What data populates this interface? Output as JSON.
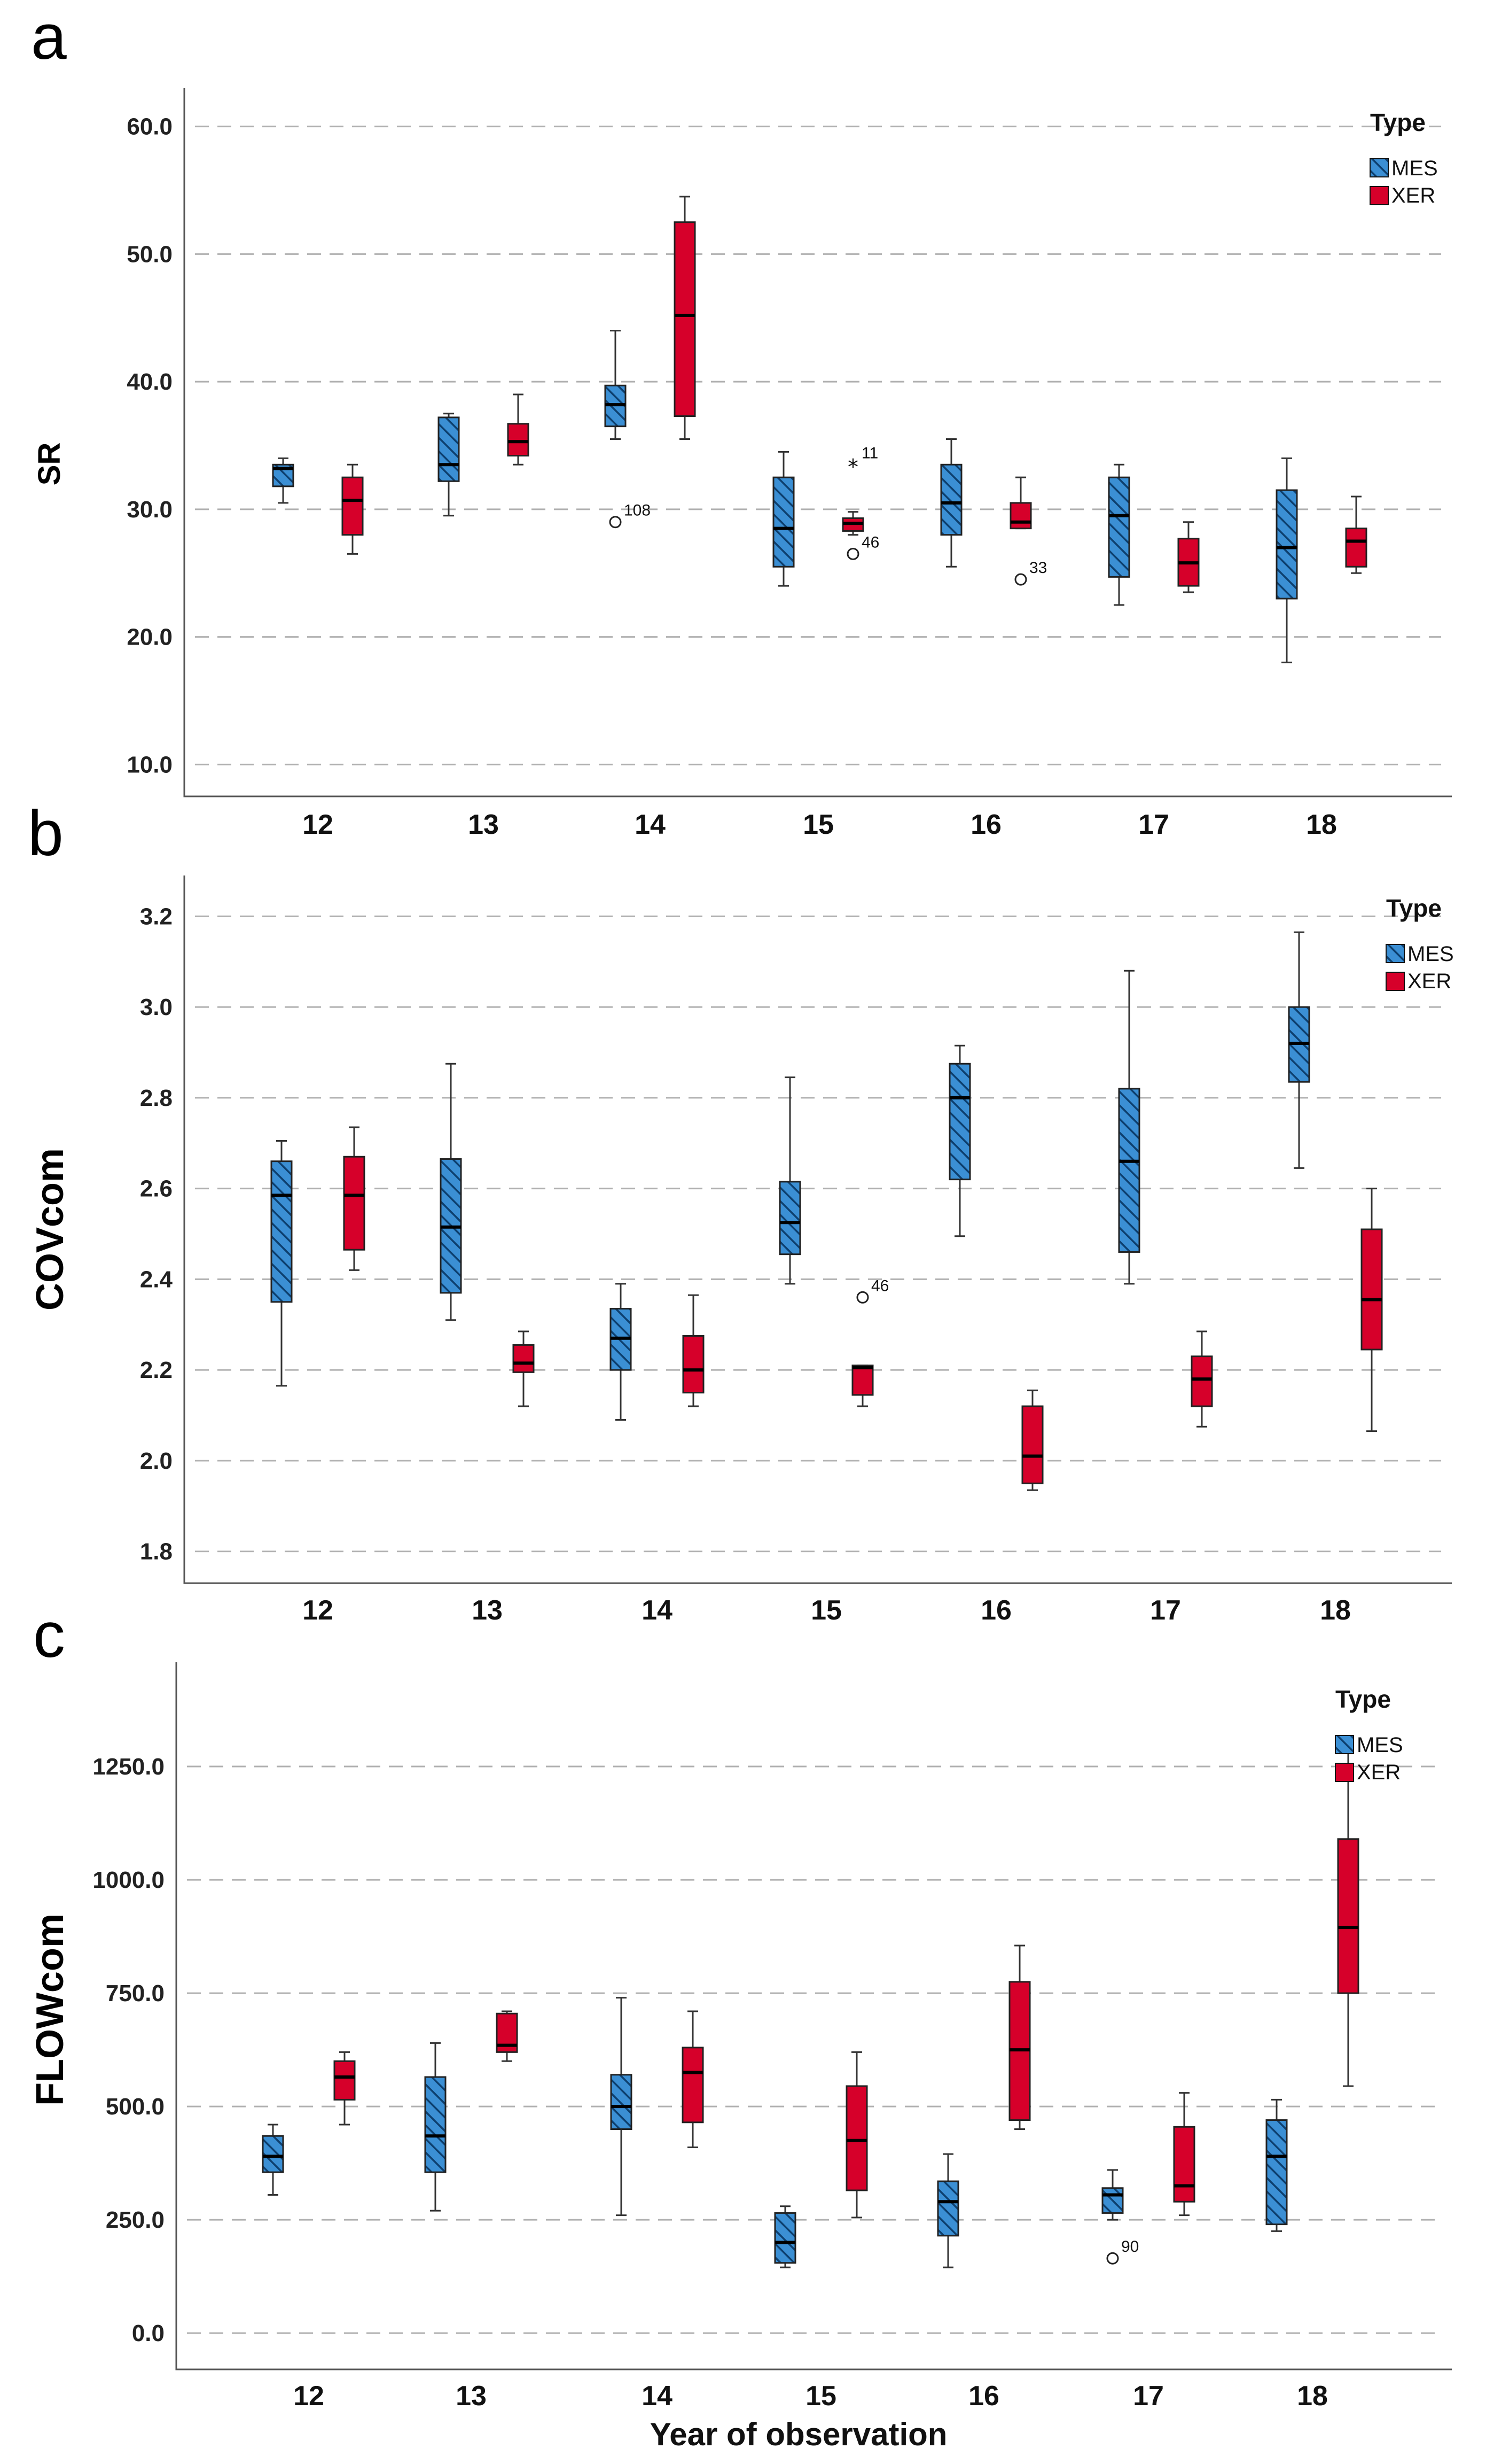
{
  "colors": {
    "MES": "#3b8fd4",
    "XER": "#d6002a",
    "hatch": "#0d3f6e"
  },
  "chart_data": [
    {
      "panel": "a",
      "type": "box",
      "ylabel": "SR",
      "xlabel": "",
      "categories": [
        "12",
        "13",
        "14",
        "15",
        "16",
        "17",
        "18"
      ],
      "ylim": [
        7.5,
        63.0
      ],
      "yticks": [
        10,
        20,
        30,
        40,
        50,
        60
      ],
      "ytick_labels": [
        "10.0",
        "20.0",
        "30.0",
        "40.0",
        "50.0",
        "60.0"
      ],
      "legend": {
        "title": "Type",
        "entries": [
          "MES",
          "XER"
        ],
        "position": "top-right"
      },
      "series": [
        {
          "name": "MES",
          "boxes": [
            {
              "min": 30.5,
              "q1": 31.8,
              "median": 33.2,
              "q3": 33.5,
              "max": 34.0
            },
            {
              "min": 29.5,
              "q1": 32.2,
              "median": 33.5,
              "q3": 37.2,
              "max": 37.5
            },
            {
              "min": 35.5,
              "q1": 36.5,
              "median": 38.2,
              "q3": 39.7,
              "max": 44.0
            },
            {
              "min": 24.0,
              "q1": 25.5,
              "median": 28.5,
              "q3": 32.5,
              "max": 34.5
            },
            {
              "min": 25.5,
              "q1": 28.0,
              "median": 30.5,
              "q3": 33.5,
              "max": 35.5
            },
            {
              "min": 22.5,
              "q1": 24.7,
              "median": 29.5,
              "q3": 32.5,
              "max": 33.5
            },
            {
              "min": 18.0,
              "q1": 23.0,
              "median": 27.0,
              "q3": 31.5,
              "max": 34.0
            }
          ]
        },
        {
          "name": "XER",
          "boxes": [
            {
              "min": 26.5,
              "q1": 28.0,
              "median": 30.7,
              "q3": 32.5,
              "max": 33.5
            },
            {
              "min": 33.5,
              "q1": 34.2,
              "median": 35.3,
              "q3": 36.7,
              "max": 39.0
            },
            {
              "min": 35.5,
              "q1": 37.3,
              "median": 45.2,
              "q3": 52.5,
              "max": 54.5
            },
            {
              "min": 28.0,
              "q1": 28.3,
              "median": 28.9,
              "q3": 29.3,
              "max": 29.8
            },
            {
              "min": 28.5,
              "q1": 28.5,
              "median": 29.0,
              "q3": 30.5,
              "max": 32.5
            },
            {
              "min": 23.5,
              "q1": 24.0,
              "median": 25.8,
              "q3": 27.7,
              "max": 29.0
            },
            {
              "min": 25.0,
              "q1": 25.5,
              "median": 27.5,
              "q3": 28.5,
              "max": 31.0
            }
          ]
        }
      ],
      "outliers": [
        {
          "category": "14",
          "series": "MES",
          "value": 29.0,
          "marker": "circle",
          "label": "108"
        },
        {
          "category": "15",
          "series": "XER",
          "value": 33.5,
          "marker": "star",
          "label": "11"
        },
        {
          "category": "15",
          "series": "XER",
          "value": 26.5,
          "marker": "circle",
          "label": "46"
        },
        {
          "category": "16",
          "series": "XER",
          "value": 24.5,
          "marker": "circle",
          "label": "33"
        }
      ]
    },
    {
      "panel": "b",
      "type": "box",
      "ylabel": "COVcom",
      "xlabel": "",
      "categories": [
        "12",
        "13",
        "14",
        "15",
        "16",
        "17",
        "18"
      ],
      "ylim": [
        1.73,
        3.29
      ],
      "yticks": [
        1.8,
        2.0,
        2.2,
        2.4,
        2.6,
        2.8,
        3.0,
        3.2
      ],
      "ytick_labels": [
        "1.8",
        "2.0",
        "2.2",
        "2.4",
        "2.6",
        "2.8",
        "3.0",
        "3.2"
      ],
      "legend": {
        "title": "Type",
        "entries": [
          "MES",
          "XER"
        ],
        "position": "top-right"
      },
      "series": [
        {
          "name": "MES",
          "boxes": [
            {
              "min": 2.165,
              "q1": 2.35,
              "median": 2.585,
              "q3": 2.66,
              "max": 2.705
            },
            {
              "min": 2.31,
              "q1": 2.37,
              "median": 2.515,
              "q3": 2.665,
              "max": 2.875
            },
            {
              "min": 2.09,
              "q1": 2.2,
              "median": 2.27,
              "q3": 2.335,
              "max": 2.39
            },
            {
              "min": 2.39,
              "q1": 2.455,
              "median": 2.525,
              "q3": 2.615,
              "max": 2.845
            },
            {
              "min": 2.495,
              "q1": 2.62,
              "median": 2.8,
              "q3": 2.875,
              "max": 2.915
            },
            {
              "min": 2.39,
              "q1": 2.46,
              "median": 2.66,
              "q3": 2.82,
              "max": 3.08
            },
            {
              "min": 2.645,
              "q1": 2.835,
              "median": 2.92,
              "q3": 3.0,
              "max": 3.165
            }
          ]
        },
        {
          "name": "XER",
          "boxes": [
            {
              "min": 2.42,
              "q1": 2.465,
              "median": 2.585,
              "q3": 2.67,
              "max": 2.735
            },
            {
              "min": 2.12,
              "q1": 2.195,
              "median": 2.215,
              "q3": 2.255,
              "max": 2.285
            },
            {
              "min": 2.12,
              "q1": 2.15,
              "median": 2.2,
              "q3": 2.275,
              "max": 2.365
            },
            {
              "min": 2.12,
              "q1": 2.145,
              "median": 2.205,
              "q3": 2.21,
              "max": 2.21
            },
            {
              "min": 1.935,
              "q1": 1.95,
              "median": 2.01,
              "q3": 2.12,
              "max": 2.155
            },
            {
              "min": 2.075,
              "q1": 2.12,
              "median": 2.18,
              "q3": 2.23,
              "max": 2.285
            },
            {
              "min": 2.065,
              "q1": 2.245,
              "median": 2.355,
              "q3": 2.51,
              "max": 2.6
            }
          ]
        }
      ],
      "outliers": [
        {
          "category": "15",
          "series": "XER",
          "value": 2.36,
          "marker": "circle",
          "label": "46"
        }
      ]
    },
    {
      "panel": "c",
      "type": "box",
      "ylabel": "FLOWcom",
      "xlabel": "Year of observation",
      "categories": [
        "12",
        "13",
        "14",
        "15",
        "16",
        "17",
        "18"
      ],
      "ylim": [
        -80,
        1480
      ],
      "yticks": [
        0,
        250,
        500,
        750,
        1000,
        1250
      ],
      "ytick_labels": [
        "0.0",
        "250.0",
        "500.0",
        "750.0",
        "1000.0",
        "1250.0"
      ],
      "legend": {
        "title": "Type",
        "entries": [
          "MES",
          "XER"
        ],
        "position": "top-right"
      },
      "series": [
        {
          "name": "MES",
          "boxes": [
            {
              "min": 305,
              "q1": 355,
              "median": 390,
              "q3": 435,
              "max": 460
            },
            {
              "min": 270,
              "q1": 355,
              "median": 435,
              "q3": 565,
              "max": 640
            },
            {
              "min": 260,
              "q1": 450,
              "median": 500,
              "q3": 570,
              "max": 740
            },
            {
              "min": 145,
              "q1": 155,
              "median": 200,
              "q3": 265,
              "max": 280
            },
            {
              "min": 145,
              "q1": 215,
              "median": 290,
              "q3": 335,
              "max": 395
            },
            {
              "min": 250,
              "q1": 265,
              "median": 305,
              "q3": 320,
              "max": 360
            },
            {
              "min": 225,
              "q1": 240,
              "median": 390,
              "q3": 470,
              "max": 515
            }
          ]
        },
        {
          "name": "XER",
          "boxes": [
            {
              "min": 460,
              "q1": 515,
              "median": 565,
              "q3": 600,
              "max": 620
            },
            {
              "min": 600,
              "q1": 620,
              "median": 635,
              "q3": 705,
              "max": 710
            },
            {
              "min": 410,
              "q1": 465,
              "median": 575,
              "q3": 630,
              "max": 710
            },
            {
              "min": 255,
              "q1": 315,
              "median": 425,
              "q3": 545,
              "max": 620
            },
            {
              "min": 450,
              "q1": 470,
              "median": 625,
              "q3": 775,
              "max": 855
            },
            {
              "min": 260,
              "q1": 290,
              "median": 325,
              "q3": 455,
              "max": 530
            },
            {
              "min": 545,
              "q1": 750,
              "median": 895,
              "q3": 1090,
              "max": 1300
            }
          ]
        }
      ],
      "outliers": [
        {
          "category": "17",
          "series": "MES",
          "value": 165,
          "marker": "circle",
          "label": "90"
        }
      ]
    }
  ]
}
